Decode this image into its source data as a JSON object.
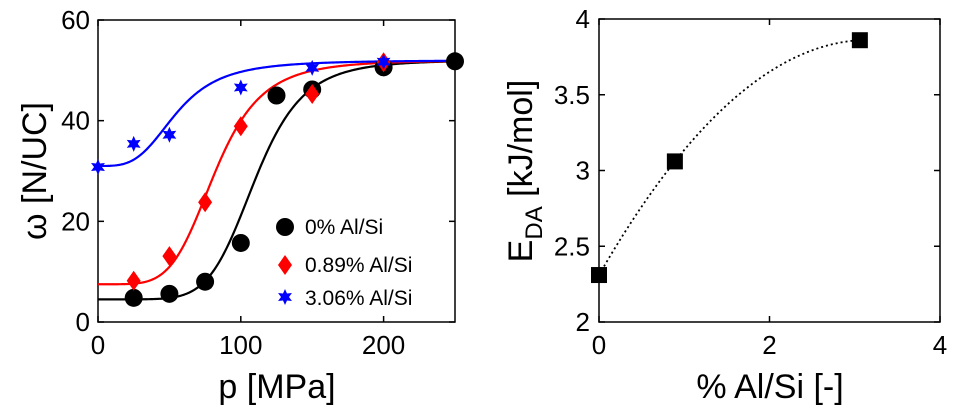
{
  "chart_data": [
    {
      "type": "scatter",
      "xlabel": "p [MPa]",
      "ylabel": "ω [N/UC]",
      "xlim": [
        0,
        250
      ],
      "ylim": [
        0,
        60
      ],
      "xticks": [
        0,
        100,
        200
      ],
      "yticks": [
        0,
        20,
        40,
        60
      ],
      "grid": false,
      "legend": "lower-right",
      "series": [
        {
          "name": "0% Al/Si",
          "color": "#000000",
          "marker": "circle",
          "x": [
            25,
            50,
            75,
            100,
            125,
            150,
            200,
            250
          ],
          "y": [
            4.8,
            5.6,
            8.0,
            15.7,
            45.0,
            46.2,
            50.6,
            51.8
          ],
          "fit": {
            "base": 4.5,
            "top": 52.0,
            "p50": 110,
            "n": 6.5
          }
        },
        {
          "name": "0.89% Al/Si",
          "color": "#ff0000",
          "marker": "diamond",
          "x": [
            25,
            50,
            75,
            100,
            150,
            200
          ],
          "y": [
            8.2,
            13.1,
            23.8,
            38.9,
            45.3,
            51.6
          ],
          "fit": {
            "base": 7.5,
            "top": 52.0,
            "p50": 82,
            "n": 5.0
          }
        },
        {
          "name": "3.06% Al/Si",
          "color": "#0000ff",
          "marker": "star",
          "x": [
            0,
            25,
            50,
            100,
            150,
            200
          ],
          "y": [
            30.8,
            35.4,
            37.2,
            46.6,
            50.5,
            51.7
          ],
          "fit": {
            "base": 31.0,
            "top": 52.0,
            "p50": 55,
            "n": 3.5
          }
        }
      ]
    },
    {
      "type": "scatter",
      "xlabel": "% Al/Si [-]",
      "ylabel_main": "E",
      "ylabel_sub": "DA",
      "ylabel_unit": " [kJ/mol]",
      "xlim": [
        0,
        4
      ],
      "ylim": [
        2,
        4
      ],
      "xticks": [
        0,
        2,
        4
      ],
      "yticks": [
        2,
        2.5,
        3,
        3.5,
        4
      ],
      "grid": false,
      "series": [
        {
          "color": "#000000",
          "marker": "square",
          "x": [
            0,
            0.89,
            3.06
          ],
          "y": [
            2.31,
            3.06,
            3.86
          ]
        }
      ]
    }
  ]
}
